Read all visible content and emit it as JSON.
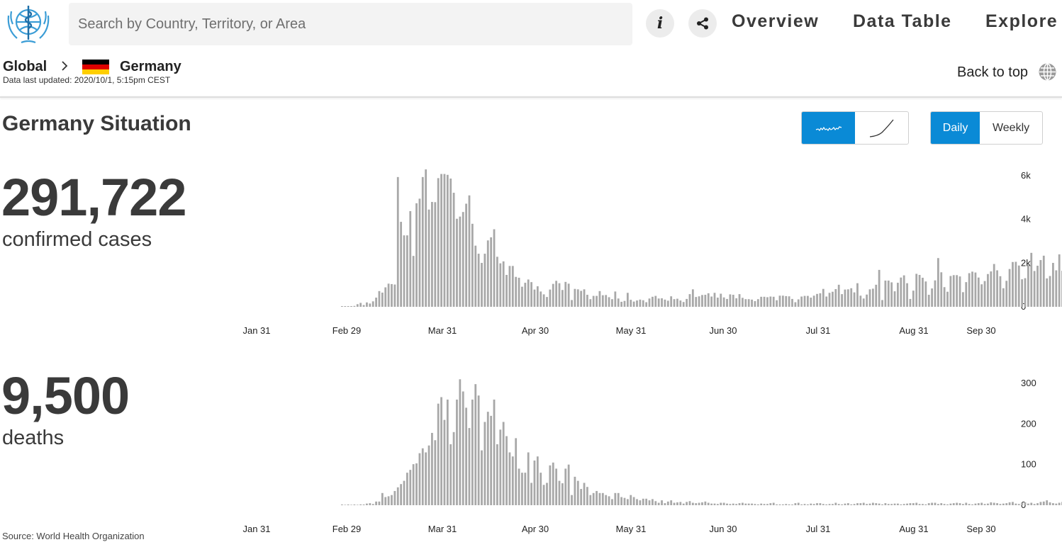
{
  "header": {
    "search_placeholder": "Search by Country, Territory, or Area",
    "info_label": "i",
    "nav": [
      "Overview",
      "Data Table",
      "Explore"
    ]
  },
  "breadcrumb": {
    "root": "Global",
    "country": "Germany",
    "updated": "Data last updated: 2020/10/1, 5:15pm CEST",
    "back_to_top": "Back to top"
  },
  "section": {
    "title": "Germany Situation",
    "period_options": [
      "Daily",
      "Weekly"
    ],
    "selected_period": "Daily",
    "chart_modes": [
      "daily-bars-icon",
      "cumulative-curve-icon"
    ]
  },
  "stats": {
    "cases_value": "291,722",
    "cases_label": "confirmed cases",
    "deaths_value": "9,500",
    "deaths_label": "deaths"
  },
  "source": "Source: World Health Organization",
  "colors": {
    "accent": "#0a8ad6",
    "bar": "#a8a8a8",
    "text": "#3a3a3a"
  },
  "chart_data": [
    {
      "type": "bar",
      "title": "",
      "series": [
        {
          "values": [
            5,
            10,
            20,
            15,
            40,
            120,
            180,
            80,
            200,
            150,
            250,
            420,
            720,
            650,
            890,
            1060,
            1040,
            1020,
            5940,
            3890,
            3270,
            3270,
            4380,
            2330,
            4740,
            4950,
            5940,
            6290,
            4450,
            4800,
            4790,
            5890,
            6080,
            6080,
            6040,
            5870,
            5220,
            4030,
            4130,
            4340,
            4720,
            5100,
            3800,
            2800,
            2430,
            2010,
            2430,
            3040,
            3180,
            3550,
            2290,
            1990,
            2080,
            1460,
            1870,
            1870,
            1370,
            1330,
            920,
            1100,
            1250,
            1130,
            790,
            940,
            700,
            570,
            450,
            790,
            1050,
            1190,
            1080,
            770,
            1140,
            1060,
            310,
            820,
            800,
            730,
            800,
            550,
            350,
            500,
            500,
            720,
            530,
            540,
            440,
            350,
            700,
            380,
            230,
            270,
            640,
            320,
            240,
            290,
            330,
            300,
            210,
            380,
            460,
            500,
            380,
            390,
            330,
            280,
            480,
            350,
            370,
            290,
            220,
            360,
            580,
            800,
            450,
            480,
            540,
            550,
            620,
            470,
            640,
            420,
            600,
            430,
            360,
            570,
            550,
            390,
            580,
            410,
            350,
            350,
            330,
            260,
            350,
            460,
            460,
            440,
            470,
            460,
            300,
            510,
            510,
            490,
            480,
            360,
            210,
            340,
            470,
            500,
            500,
            420,
            510,
            590,
            620,
            820,
            470,
            640,
            690,
            810,
            1010,
            580,
            790,
            800,
            850,
            660,
            1080,
            510,
            380,
            560,
            800,
            830,
            1010,
            1690,
            310,
            1200,
            1200,
            1120,
            710,
            1100,
            1340,
            1440,
            1080,
            360,
            740,
            1510,
            1460,
            1330,
            1160,
            550,
            840,
            1210,
            2230,
            1580,
            900,
            690,
            1410,
            1450,
            1450,
            1390,
            670,
            1130,
            1540,
            1610,
            1570,
            1340,
            1030,
            1180,
            1500,
            1620,
            1960,
            1670,
            1400,
            850,
            1190,
            1730,
            2050,
            2060,
            1890,
            1260,
            1310,
            1910,
            2470,
            1640,
            1880,
            2140,
            2340,
            1300,
            1410,
            2010,
            1670,
            2400,
            1650,
            1160,
            2150,
            1740,
            1810,
            2090,
            2100,
            1180,
            1800,
            2460,
            2210,
            2090,
            1130,
            2130,
            2090,
            2130,
            2510,
            1400,
            1550,
            2070,
            2470,
            1460,
            1800,
            2130,
            2100,
            2550,
            2090,
            1410,
            2120,
            2540
          ]
        }
      ],
      "y_ticks": [
        "0",
        "2k",
        "4k",
        "6k"
      ],
      "ylim": [
        0,
        6500
      ],
      "x_ticks": [
        "Jan 31",
        "Feb 29",
        "Mar 31",
        "Apr 30",
        "May 31",
        "Jun 30",
        "Jul 31",
        "Aug 31",
        "Sep 30"
      ]
    },
    {
      "type": "bar",
      "title": "",
      "series": [
        {
          "values": [
            1,
            0,
            1,
            0,
            1,
            0,
            2,
            1,
            4,
            5,
            3,
            9,
            9,
            30,
            20,
            22,
            25,
            35,
            44,
            52,
            60,
            80,
            87,
            101,
            103,
            128,
            140,
            130,
            147,
            178,
            160,
            250,
            266,
            210,
            260,
            150,
            180,
            260,
            310,
            280,
            240,
            190,
            260,
            298,
            270,
            135,
            205,
            230,
            220,
            260,
            150,
            186,
            205,
            170,
            130,
            120,
            165,
            90,
            80,
            80,
            130,
            55,
            110,
            120,
            80,
            50,
            55,
            98,
            105,
            90,
            60,
            54,
            90,
            100,
            25,
            70,
            60,
            40,
            55,
            45,
            25,
            30,
            35,
            30,
            30,
            25,
            22,
            15,
            30,
            30,
            20,
            18,
            15,
            25,
            20,
            15,
            12,
            16,
            16,
            12,
            15,
            10,
            6,
            12,
            5,
            9,
            12,
            6,
            7,
            8,
            4,
            8,
            10,
            6,
            5,
            6,
            7,
            9,
            6,
            4,
            4,
            3,
            6,
            6,
            4,
            3,
            4,
            3,
            5,
            6,
            4,
            4,
            4,
            3,
            2,
            4,
            3,
            3,
            5,
            6,
            2,
            2,
            2,
            3,
            2,
            1,
            5,
            6,
            2,
            3,
            2,
            4,
            3,
            5,
            5,
            3,
            2,
            3,
            3,
            6,
            3,
            2,
            4,
            5,
            2,
            3,
            5,
            5,
            6,
            3,
            4,
            6,
            5,
            4,
            2,
            5,
            3,
            3,
            4,
            4,
            2,
            3,
            4,
            5,
            5,
            6,
            3,
            3,
            2,
            5,
            6,
            6,
            3,
            5,
            3,
            2,
            4,
            5,
            6,
            5,
            3,
            6,
            3,
            2,
            4,
            5,
            6,
            3,
            4,
            7,
            6,
            5,
            3,
            4,
            5,
            7,
            8,
            4,
            3,
            6,
            7,
            4,
            6,
            3,
            5,
            8,
            9,
            12,
            7,
            5,
            4,
            6,
            8,
            14,
            16,
            11,
            8,
            6,
            10,
            14,
            12,
            9
          ]
        }
      ],
      "y_ticks": [
        "0",
        "100",
        "200",
        "300"
      ],
      "ylim": [
        0,
        320
      ],
      "x_ticks": [
        "Jan 31",
        "Feb 29",
        "Mar 31",
        "Apr 30",
        "May 31",
        "Jun 30",
        "Jul 31",
        "Aug 31",
        "Sep 30"
      ]
    }
  ]
}
